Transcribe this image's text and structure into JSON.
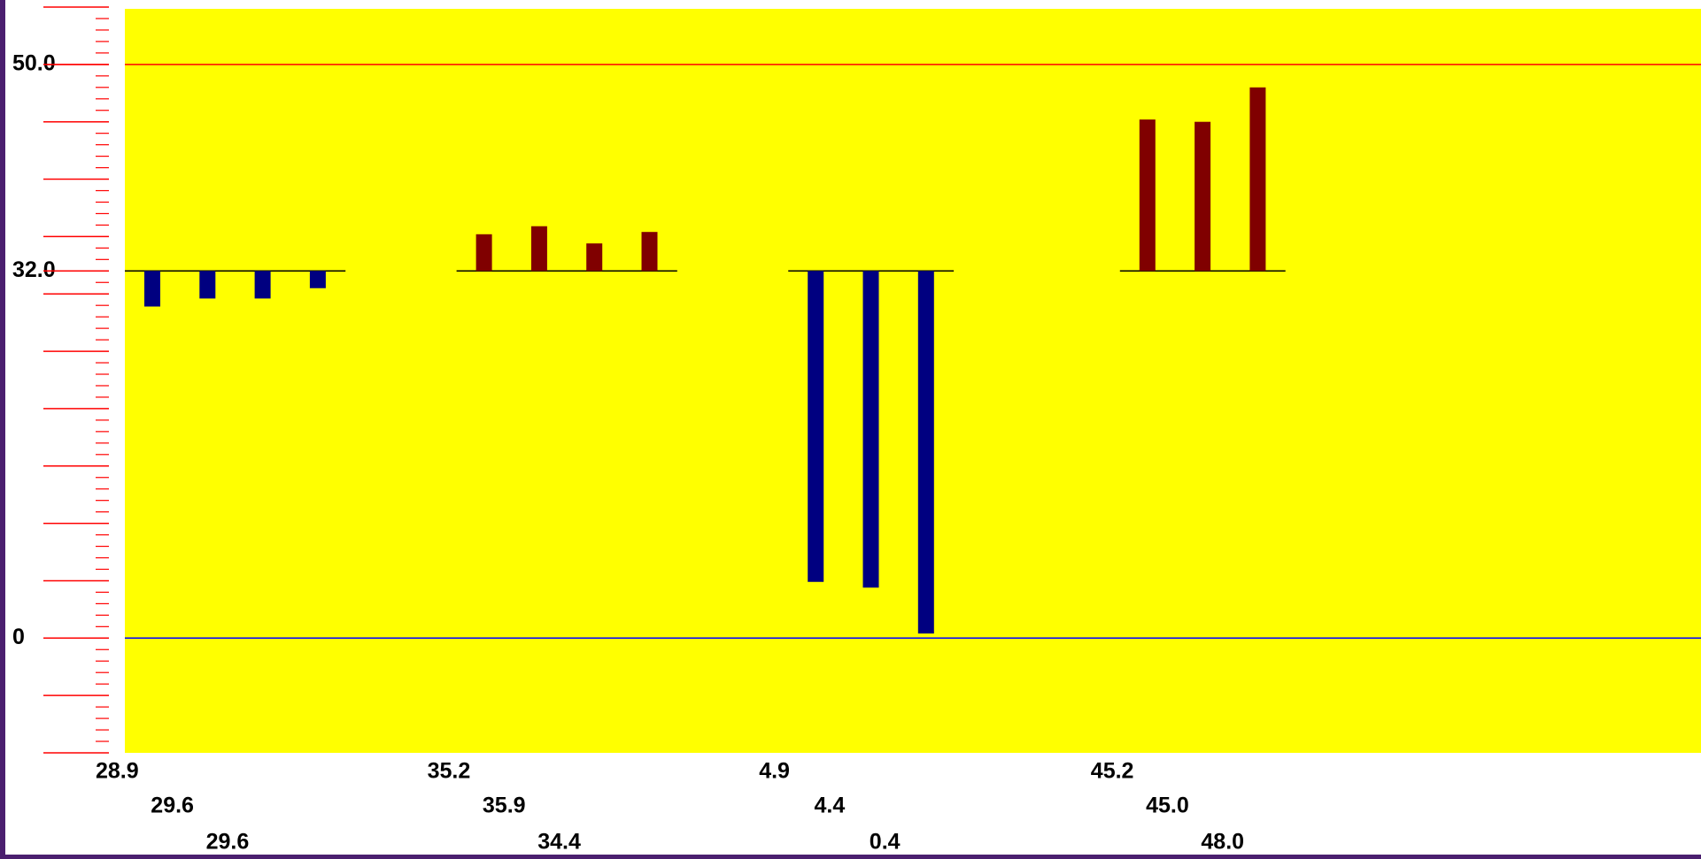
{
  "chart_data": {
    "type": "bar",
    "baseline": 32,
    "ylim": [
      -10,
      55
    ],
    "yticks": [
      0,
      {
        "value": 32,
        "label": "32.0"
      },
      {
        "value": 50,
        "label": "50.0"
      }
    ],
    "major_tick_step": 5,
    "minor_tick_step": 1,
    "background": "#ffff00",
    "up_color": "#800000",
    "down_color": "#000080",
    "ref_lines": [
      {
        "value": 50,
        "color": "#ff0000"
      },
      {
        "value": 0,
        "color": "#0000ff"
      }
    ],
    "groups": [
      {
        "values": [
          28.9,
          29.6,
          29.6,
          30.5
        ],
        "value_labels": [
          "28.9",
          "29.6",
          "29.6",
          null
        ]
      },
      {
        "values": [
          35.2,
          35.9,
          34.4,
          35.4
        ],
        "value_labels": [
          "35.2",
          "35.9",
          "34.4",
          null
        ]
      },
      {
        "values": [
          4.9,
          4.4,
          0.4
        ],
        "value_labels": [
          "4.9",
          "4.4",
          "0.4"
        ]
      },
      {
        "values": [
          45.2,
          45.0,
          48.0
        ],
        "value_labels": [
          "45.2",
          "45.0",
          "48.0"
        ]
      }
    ]
  }
}
